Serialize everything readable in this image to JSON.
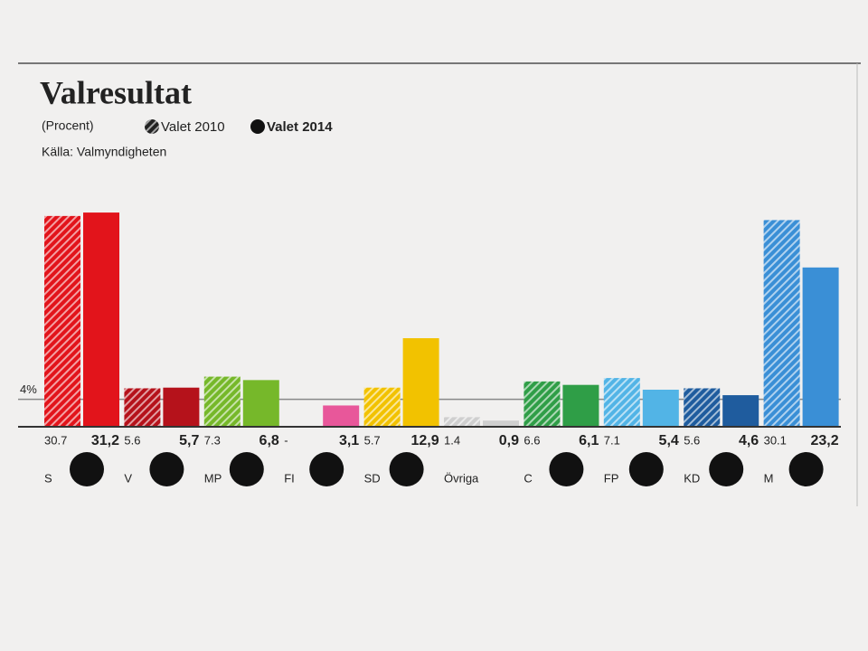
{
  "chart_data": {
    "type": "bar",
    "title": "Valresultat",
    "subtitle": "(Procent)",
    "source": "Källa: Valmyndigheten",
    "categories": [
      "S",
      "V",
      "MP",
      "FI",
      "SD",
      "Övriga",
      "C",
      "FP",
      "KD",
      "M"
    ],
    "colors": [
      "#e2141b",
      "#b5121b",
      "#76b82a",
      "#e8579a",
      "#f2c200",
      "#cfcfcf",
      "#2f9e47",
      "#52b4e6",
      "#1f5c9e",
      "#3a8fd6"
    ],
    "series": [
      {
        "name": "Valet 2010",
        "pattern": "hatched",
        "values": [
          30.7,
          5.6,
          7.3,
          null,
          5.7,
          1.4,
          6.6,
          7.1,
          5.6,
          30.1
        ],
        "value_labels": [
          "30.7",
          "5.6",
          "7.3",
          "-",
          "5.7",
          "1.4",
          "6.6",
          "7.1",
          "5.6",
          "30.1"
        ]
      },
      {
        "name": "Valet 2014",
        "pattern": "solid",
        "values": [
          31.2,
          5.7,
          6.8,
          3.1,
          12.9,
          0.9,
          6.1,
          5.4,
          4.6,
          23.2
        ],
        "value_labels": [
          "31,2",
          "5,7",
          "6,8",
          "3,1",
          "12,9",
          "0,9",
          "6,1",
          "5,4",
          "4,6",
          "23,2"
        ]
      }
    ],
    "threshold": {
      "value": 4,
      "label": "4%"
    },
    "ylim": [
      0,
      32
    ]
  }
}
